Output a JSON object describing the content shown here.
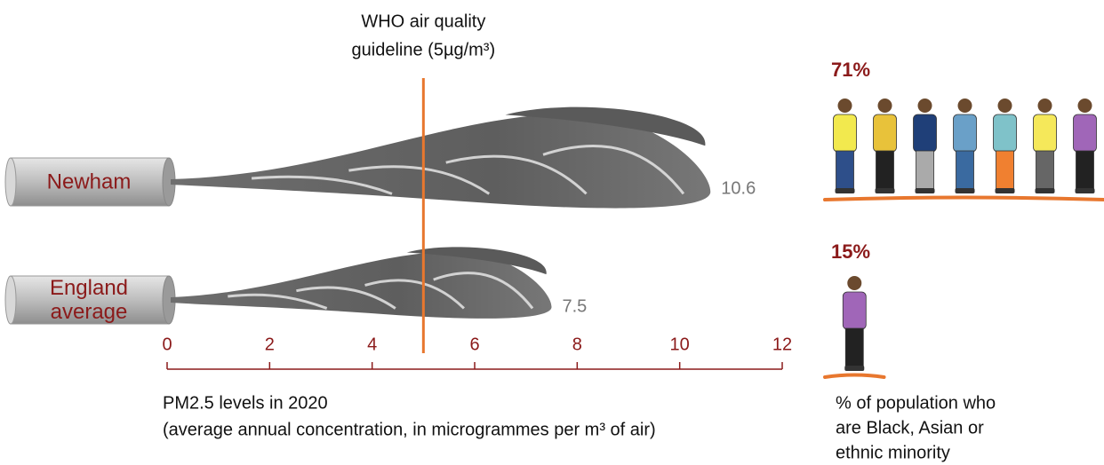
{
  "chart_data": [
    {
      "type": "plume",
      "categories": [
        "Newham",
        "England average"
      ],
      "values": [
        10.6,
        7.5
      ],
      "color": "#7a7a7a",
      "xlim": [
        0,
        12
      ],
      "xticks": [
        0,
        2,
        4,
        6,
        8,
        10,
        12
      ],
      "xlabel": [
        "PM2.5 levels in 2020",
        "(average annual concentration, in microgrammes per m³ of air)"
      ],
      "reference": {
        "value": 5,
        "label": [
          "WHO air quality",
          "guideline (5µg/m³)"
        ],
        "color": "#e8772e"
      }
    },
    {
      "type": "pictogram",
      "values": [
        71,
        15
      ],
      "value_labels": [
        "71%",
        "15%"
      ],
      "color": "#e8772e",
      "caption": [
        "% of population who",
        "are Black, Asian or",
        "ethnic minority"
      ]
    }
  ]
}
